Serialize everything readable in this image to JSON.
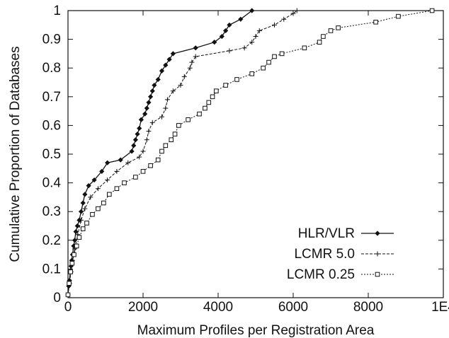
{
  "chart_data": {
    "type": "line",
    "xlabel": "Maximum Profiles per Registration Area",
    "ylabel": "Cumulative Proportion of Databases",
    "xlim": [
      0,
      10000
    ],
    "ylim": [
      0,
      1
    ],
    "xticks": [
      {
        "value": 0,
        "label": "0"
      },
      {
        "value": 2000,
        "label": "2000"
      },
      {
        "value": 4000,
        "label": "4000"
      },
      {
        "value": 6000,
        "label": "6000"
      },
      {
        "value": 8000,
        "label": "8000"
      },
      {
        "value": 10000,
        "label": "1E4"
      }
    ],
    "yticks": [
      {
        "value": 0,
        "label": "0"
      },
      {
        "value": 0.1,
        "label": "0.1"
      },
      {
        "value": 0.2,
        "label": "0.2"
      },
      {
        "value": 0.3,
        "label": "0.3"
      },
      {
        "value": 0.4,
        "label": "0.4"
      },
      {
        "value": 0.5,
        "label": "0.5"
      },
      {
        "value": 0.6,
        "label": "0.6"
      },
      {
        "value": 0.7,
        "label": "0.7"
      },
      {
        "value": 0.8,
        "label": "0.8"
      },
      {
        "value": 0.9,
        "label": "0.9"
      },
      {
        "value": 1,
        "label": "1"
      }
    ],
    "grid": false,
    "legend_position": "bottom-right",
    "series": [
      {
        "name": "HLR/VLR",
        "marker": "diamond",
        "line_style": "solid",
        "points": [
          [
            0,
            0.01
          ],
          [
            20,
            0.04
          ],
          [
            40,
            0.06
          ],
          [
            60,
            0.09
          ],
          [
            80,
            0.11
          ],
          [
            100,
            0.13
          ],
          [
            120,
            0.15
          ],
          [
            150,
            0.18
          ],
          [
            180,
            0.2
          ],
          [
            210,
            0.23
          ],
          [
            250,
            0.25
          ],
          [
            300,
            0.27
          ],
          [
            350,
            0.3
          ],
          [
            400,
            0.33
          ],
          [
            450,
            0.36
          ],
          [
            550,
            0.39
          ],
          [
            700,
            0.41
          ],
          [
            900,
            0.44
          ],
          [
            1050,
            0.47
          ],
          [
            1400,
            0.48
          ],
          [
            1700,
            0.51
          ],
          [
            1750,
            0.53
          ],
          [
            1800,
            0.55
          ],
          [
            1850,
            0.57
          ],
          [
            1900,
            0.59
          ],
          [
            1950,
            0.62
          ],
          [
            2050,
            0.64
          ],
          [
            2100,
            0.66
          ],
          [
            2150,
            0.68
          ],
          [
            2200,
            0.7
          ],
          [
            2250,
            0.72
          ],
          [
            2300,
            0.74
          ],
          [
            2400,
            0.76
          ],
          [
            2500,
            0.79
          ],
          [
            2600,
            0.81
          ],
          [
            2700,
            0.83
          ],
          [
            2800,
            0.85
          ],
          [
            3400,
            0.87
          ],
          [
            3900,
            0.89
          ],
          [
            4100,
            0.91
          ],
          [
            4200,
            0.93
          ],
          [
            4300,
            0.95
          ],
          [
            4600,
            0.97
          ],
          [
            4900,
            1.0
          ]
        ]
      },
      {
        "name": "LCMR 5.0",
        "marker": "plus",
        "line_style": "dashed",
        "points": [
          [
            0,
            0.01
          ],
          [
            40,
            0.05
          ],
          [
            80,
            0.09
          ],
          [
            120,
            0.13
          ],
          [
            180,
            0.17
          ],
          [
            260,
            0.22
          ],
          [
            350,
            0.27
          ],
          [
            450,
            0.31
          ],
          [
            600,
            0.35
          ],
          [
            800,
            0.38
          ],
          [
            1050,
            0.41
          ],
          [
            1300,
            0.44
          ],
          [
            1600,
            0.47
          ],
          [
            1900,
            0.49
          ],
          [
            2000,
            0.51
          ],
          [
            2100,
            0.55
          ],
          [
            2150,
            0.58
          ],
          [
            2250,
            0.61
          ],
          [
            2500,
            0.63
          ],
          [
            2600,
            0.66
          ],
          [
            2650,
            0.69
          ],
          [
            2800,
            0.72
          ],
          [
            3000,
            0.74
          ],
          [
            3100,
            0.77
          ],
          [
            3250,
            0.8
          ],
          [
            3300,
            0.82
          ],
          [
            3400,
            0.84
          ],
          [
            4300,
            0.86
          ],
          [
            4700,
            0.87
          ],
          [
            4900,
            0.89
          ],
          [
            5000,
            0.91
          ],
          [
            5100,
            0.93
          ],
          [
            5500,
            0.95
          ],
          [
            5750,
            0.97
          ],
          [
            6000,
            0.99
          ],
          [
            6100,
            1.0
          ]
        ]
      },
      {
        "name": "LCMR 0.25",
        "marker": "square",
        "line_style": "dotted",
        "points": [
          [
            0,
            0.01
          ],
          [
            30,
            0.05
          ],
          [
            70,
            0.09
          ],
          [
            110,
            0.12
          ],
          [
            160,
            0.15
          ],
          [
            230,
            0.18
          ],
          [
            300,
            0.21
          ],
          [
            400,
            0.24
          ],
          [
            500,
            0.26
          ],
          [
            650,
            0.29
          ],
          [
            800,
            0.31
          ],
          [
            950,
            0.33
          ],
          [
            1100,
            0.36
          ],
          [
            1300,
            0.38
          ],
          [
            1500,
            0.4
          ],
          [
            1800,
            0.42
          ],
          [
            2000,
            0.44
          ],
          [
            2200,
            0.46
          ],
          [
            2400,
            0.48
          ],
          [
            2500,
            0.51
          ],
          [
            2600,
            0.53
          ],
          [
            2750,
            0.55
          ],
          [
            2850,
            0.57
          ],
          [
            2950,
            0.6
          ],
          [
            3200,
            0.62
          ],
          [
            3500,
            0.64
          ],
          [
            3650,
            0.66
          ],
          [
            3750,
            0.68
          ],
          [
            3850,
            0.7
          ],
          [
            3950,
            0.72
          ],
          [
            4200,
            0.74
          ],
          [
            4500,
            0.76
          ],
          [
            4900,
            0.78
          ],
          [
            5200,
            0.8
          ],
          [
            5350,
            0.82
          ],
          [
            5500,
            0.84
          ],
          [
            5700,
            0.85
          ],
          [
            6300,
            0.87
          ],
          [
            6700,
            0.89
          ],
          [
            6800,
            0.91
          ],
          [
            7000,
            0.93
          ],
          [
            7200,
            0.94
          ],
          [
            8200,
            0.96
          ],
          [
            8800,
            0.98
          ],
          [
            9700,
            1.0
          ]
        ]
      }
    ]
  }
}
